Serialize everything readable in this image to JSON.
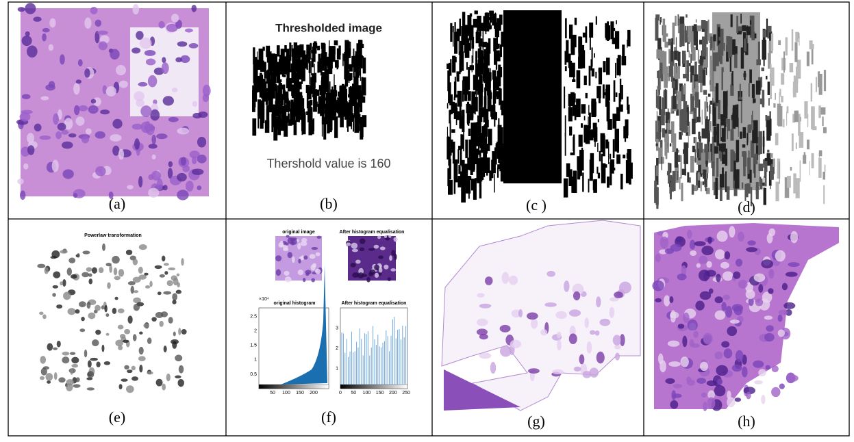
{
  "cells": [
    {
      "caption": "(a)"
    },
    {
      "caption": "(b)"
    },
    {
      "caption": "(c )"
    },
    {
      "caption": "(d)"
    },
    {
      "caption": "(e)"
    },
    {
      "caption": "(f)"
    },
    {
      "caption": "(g)"
    },
    {
      "caption": "(h)"
    }
  ],
  "panel_b": {
    "title": "Thresholded image",
    "note": "Thershold value is 160"
  },
  "panel_e": {
    "title": "Powerlaw transformation"
  },
  "panel_f": {
    "left_image_title": "original image",
    "right_image_title": "After histogram equalisation",
    "left_hist_title": "original histogram",
    "right_hist_title": "After histogram equalisation",
    "left_exponent": "×10⁴",
    "left_xticks": [
      50,
      100,
      150,
      200
    ],
    "left_yticks": [
      0.5,
      1,
      1.5,
      2,
      2.5
    ],
    "right_xticks": [
      0,
      50,
      100,
      150,
      200,
      250
    ],
    "right_yticks": [
      1,
      2,
      3
    ]
  }
}
